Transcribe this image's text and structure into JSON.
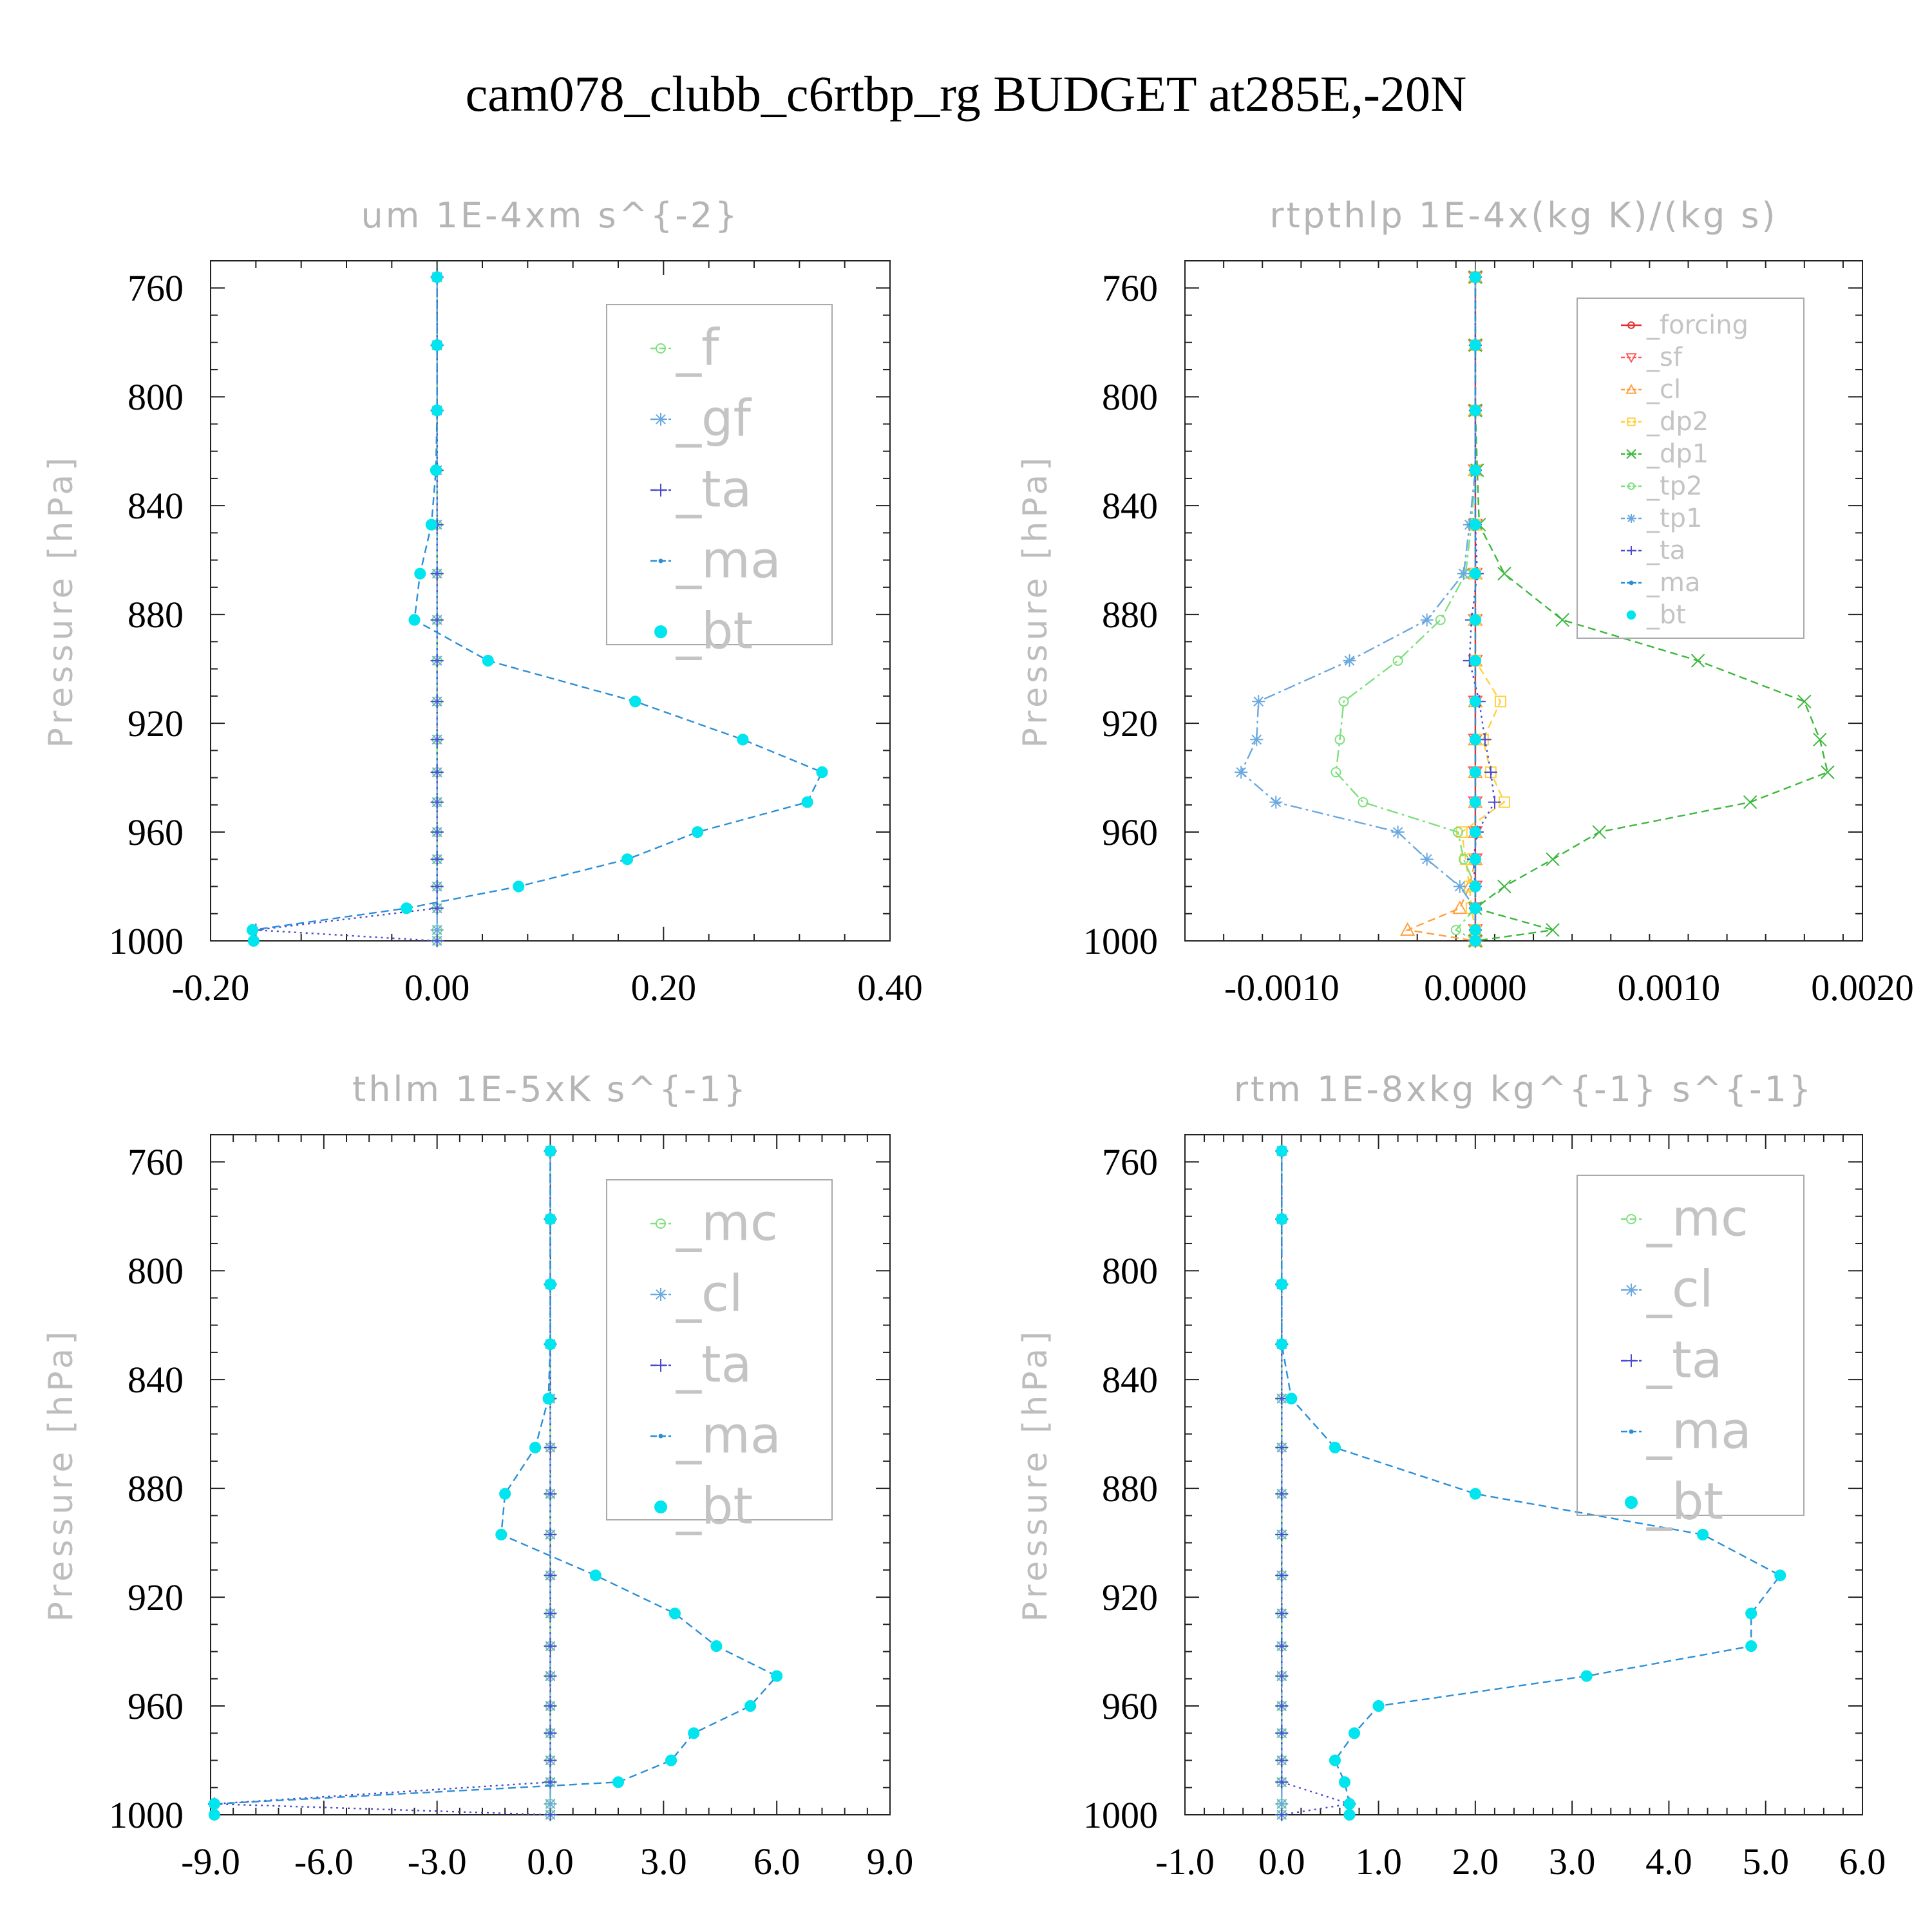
{
  "figure": {
    "title": "cam078_clubb_c6rtbp_rg  BUDGET at285E,-20N",
    "background": "#ffffff"
  },
  "chart_data": [
    {
      "type": "line",
      "title": "um   1E-4xm s^{-2}",
      "xlabel": "",
      "ylabel": "Pressure [hPa]",
      "xlim": [
        -0.2,
        0.4
      ],
      "ylim": [
        1000,
        750
      ],
      "y_inverted": true,
      "xticks": [
        -0.2,
        0.0,
        0.2,
        0.4
      ],
      "xtick_labels": [
        "-0.20",
        "0.00",
        "0.20",
        "0.40"
      ],
      "yticks": [
        760,
        800,
        840,
        880,
        920,
        960,
        1000
      ],
      "legend_position": "top-right",
      "legend_font": "large",
      "pressure_levels": [
        756,
        781,
        805,
        827,
        847,
        865,
        882,
        897,
        912,
        926,
        938,
        949,
        960,
        970,
        980,
        988,
        996,
        1000
      ],
      "series": [
        {
          "name": "_f",
          "color": "#7ee07e",
          "marker": "circle-open",
          "dash": "long",
          "values": [
            0,
            0,
            0,
            0,
            0,
            0,
            0,
            0,
            0,
            0,
            0,
            0,
            0,
            0,
            0,
            0,
            0,
            0
          ]
        },
        {
          "name": "_gf",
          "color": "#6aa8e0",
          "marker": "asterisk",
          "dash": "dashdot",
          "values": [
            0,
            0,
            0,
            0,
            0,
            0,
            0,
            0,
            0,
            0,
            0,
            0,
            0,
            0,
            0,
            0,
            0,
            0
          ]
        },
        {
          "name": "_ta",
          "color": "#4b4bcf",
          "marker": "plus",
          "dash": "dot",
          "values": [
            0,
            0,
            0,
            0,
            0,
            0,
            0,
            0,
            0,
            0,
            0,
            0,
            0,
            0,
            0,
            0,
            -0.16,
            0
          ]
        },
        {
          "name": "_ma",
          "color": "#2a8fd8",
          "marker": "dot",
          "dash": "dash",
          "values": [
            0,
            0,
            0,
            -0.001,
            -0.005,
            -0.015,
            -0.02,
            0.045,
            0.175,
            0.27,
            0.34,
            0.327,
            0.23,
            0.168,
            0.072,
            -0.027,
            -0.163,
            -0.162
          ]
        },
        {
          "name": "_bt",
          "color": "#00e5ee",
          "marker": "filled-circle",
          "dash": "none",
          "values": [
            0,
            0,
            0,
            -0.001,
            -0.005,
            -0.015,
            -0.02,
            0.045,
            0.175,
            0.27,
            0.34,
            0.327,
            0.23,
            0.168,
            0.072,
            -0.027,
            -0.163,
            -0.162
          ]
        }
      ]
    },
    {
      "type": "line",
      "title": "rtpthlp   1E-4x(kg K)/(kg s)",
      "xlabel": "",
      "ylabel": "Pressure [hPa]",
      "xlim": [
        -0.0015,
        0.002
      ],
      "ylim": [
        1000,
        750
      ],
      "y_inverted": true,
      "xticks": [
        -0.001,
        0.0,
        0.001,
        0.002
      ],
      "xtick_labels": [
        "-0.0010",
        "0.0000",
        "0.0010",
        "0.0020"
      ],
      "yticks": [
        760,
        800,
        840,
        880,
        920,
        960,
        1000
      ],
      "legend_position": "top-right",
      "legend_font": "small",
      "pressure_levels": [
        756,
        781,
        805,
        827,
        847,
        865,
        882,
        897,
        912,
        926,
        938,
        949,
        960,
        970,
        980,
        988,
        996,
        1000
      ],
      "series": [
        {
          "name": "_forcing",
          "color": "#e03030",
          "marker": "circle-open",
          "dash": "solid",
          "values": [
            0,
            0,
            0,
            0,
            0,
            0,
            0,
            0,
            0,
            0,
            0,
            0,
            0,
            0,
            0,
            0,
            0,
            0
          ]
        },
        {
          "name": "_sf",
          "color": "#ff5a5a",
          "marker": "triangle-down",
          "dash": "dash",
          "values": [
            0,
            0,
            0,
            0,
            0,
            0,
            0,
            0,
            0,
            0,
            0,
            0,
            0,
            0,
            0,
            0,
            0,
            0
          ]
        },
        {
          "name": "_cl",
          "color": "#ffa040",
          "marker": "triangle-up",
          "dash": "dash",
          "values": [
            0,
            0,
            0,
            0,
            0,
            0,
            0,
            0,
            0,
            0,
            0,
            0,
            0,
            0,
            -3e-05,
            -8e-05,
            -0.00035,
            0
          ]
        },
        {
          "name": "_dp2",
          "color": "#ffd040",
          "marker": "square-open",
          "dash": "dash",
          "values": [
            0,
            0,
            0,
            0,
            0,
            0,
            0,
            0,
            0.00013,
            4e-05,
            8e-05,
            0.00015,
            -7e-05,
            -5e-05,
            -3e-05,
            -2e-05,
            0,
            0
          ]
        },
        {
          "name": "_dp1",
          "color": "#3cb83c",
          "marker": "x",
          "dash": "dash",
          "values": [
            0,
            0,
            0,
            1e-05,
            2e-05,
            0.00015,
            0.00045,
            0.00115,
            0.0017,
            0.00178,
            0.00182,
            0.00142,
            0.00064,
            0.0004,
            0.00015,
            0,
            0.0004,
            0
          ]
        },
        {
          "name": "_tp2",
          "color": "#7ee07e",
          "marker": "circle-open",
          "dash": "dashdot",
          "values": [
            0,
            0,
            0,
            0,
            -2e-05,
            -5e-05,
            -0.00018,
            -0.0004,
            -0.00068,
            -0.0007,
            -0.00072,
            -0.00058,
            -9e-05,
            -6e-05,
            0,
            0,
            -0.0001,
            0
          ]
        },
        {
          "name": "_tp1",
          "color": "#6aa8e0",
          "marker": "asterisk",
          "dash": "dashdot",
          "values": [
            0,
            0,
            0,
            0,
            -3e-05,
            -6e-05,
            -0.00025,
            -0.00065,
            -0.00112,
            -0.00113,
            -0.00121,
            -0.00103,
            -0.0004,
            -0.00025,
            -8e-05,
            0,
            0,
            0
          ]
        },
        {
          "name": "_ta",
          "color": "#4b4bcf",
          "marker": "plus",
          "dash": "dot",
          "values": [
            0,
            0,
            0,
            0,
            0,
            1e-05,
            -2e-05,
            -3e-05,
            2e-05,
            5e-05,
            8e-05,
            0.0001,
            1e-05,
            -1e-05,
            0,
            0,
            0,
            0
          ]
        },
        {
          "name": "_ma",
          "color": "#2a8fd8",
          "marker": "dot",
          "dash": "dash",
          "values": [
            0,
            0,
            0,
            0,
            0,
            0,
            0,
            0,
            0,
            0,
            0,
            0,
            0,
            0,
            0,
            0,
            0,
            0
          ]
        },
        {
          "name": "_bt",
          "color": "#00e5ee",
          "marker": "filled-circle",
          "dash": "none",
          "values": [
            0,
            0,
            0,
            0,
            0,
            0,
            0,
            0,
            0,
            0,
            0,
            0,
            0,
            0,
            0,
            0,
            0,
            0
          ]
        }
      ]
    },
    {
      "type": "line",
      "title": "thlm   1E-5xK s^{-1}",
      "xlabel": "",
      "ylabel": "Pressure [hPa]",
      "xlim": [
        -9,
        9
      ],
      "ylim": [
        1000,
        750
      ],
      "y_inverted": true,
      "xticks": [
        -9,
        -6,
        -3,
        0,
        3,
        6,
        9
      ],
      "xtick_labels": [
        "-9.0",
        "-6.0",
        "-3.0",
        "0.0",
        "3.0",
        "6.0",
        "9.0"
      ],
      "yticks": [
        760,
        800,
        840,
        880,
        920,
        960,
        1000
      ],
      "legend_position": "top-right",
      "legend_font": "large",
      "pressure_levels": [
        756,
        781,
        805,
        827,
        847,
        865,
        882,
        897,
        912,
        926,
        938,
        949,
        960,
        970,
        980,
        988,
        996,
        1000
      ],
      "series": [
        {
          "name": "_mc",
          "color": "#7ee07e",
          "marker": "circle-open",
          "dash": "long",
          "values": [
            0,
            0,
            0,
            0,
            0,
            0,
            0,
            0,
            0,
            0,
            0,
            0,
            0,
            0,
            0,
            0,
            0,
            0
          ]
        },
        {
          "name": "_cl",
          "color": "#6aa8e0",
          "marker": "asterisk",
          "dash": "dashdot",
          "values": [
            0,
            0,
            0,
            0,
            0,
            0,
            0,
            0,
            0,
            0,
            0,
            0,
            0,
            0,
            0,
            0,
            0,
            0
          ]
        },
        {
          "name": "_ta",
          "color": "#4b4bcf",
          "marker": "plus",
          "dash": "dot",
          "values": [
            0,
            0,
            0,
            0,
            0,
            0,
            0,
            0,
            0,
            0,
            0,
            0,
            0,
            0,
            0,
            0,
            -8.9,
            0
          ]
        },
        {
          "name": "_ma",
          "color": "#2a8fd8",
          "marker": "dot",
          "dash": "dash",
          "values": [
            0,
            0,
            0,
            0,
            -0.05,
            -0.4,
            -1.2,
            -1.3,
            1.2,
            3.3,
            4.4,
            6.0,
            5.3,
            3.8,
            3.2,
            1.8,
            -8.9,
            -8.9
          ]
        },
        {
          "name": "_bt",
          "color": "#00e5ee",
          "marker": "filled-circle",
          "dash": "none",
          "values": [
            0,
            0,
            0,
            0,
            -0.05,
            -0.4,
            -1.2,
            -1.3,
            1.2,
            3.3,
            4.4,
            6.0,
            5.3,
            3.8,
            3.2,
            1.8,
            -8.9,
            -8.9
          ]
        }
      ]
    },
    {
      "type": "line",
      "title": "rtm   1E-8xkg kg^{-1} s^{-1}",
      "xlabel": "",
      "ylabel": "Pressure [hPa]",
      "xlim": [
        -1,
        6
      ],
      "ylim": [
        1000,
        750
      ],
      "y_inverted": true,
      "xticks": [
        -1,
        0,
        1,
        2,
        3,
        4,
        5,
        6
      ],
      "xtick_labels": [
        "-1.0",
        "0.0",
        "1.0",
        "2.0",
        "3.0",
        "4.0",
        "5.0",
        "6.0"
      ],
      "yticks": [
        760,
        800,
        840,
        880,
        920,
        960,
        1000
      ],
      "legend_position": "top-right",
      "legend_font": "large",
      "pressure_levels": [
        756,
        781,
        805,
        827,
        847,
        865,
        882,
        897,
        912,
        926,
        938,
        949,
        960,
        970,
        980,
        988,
        996,
        1000
      ],
      "series": [
        {
          "name": "_mc",
          "color": "#7ee07e",
          "marker": "circle-open",
          "dash": "long",
          "values": [
            0,
            0,
            0,
            0,
            0,
            0,
            0,
            0,
            0,
            0,
            0,
            0,
            0,
            0,
            0,
            0,
            0,
            0
          ]
        },
        {
          "name": "_cl",
          "color": "#6aa8e0",
          "marker": "asterisk",
          "dash": "dashdot",
          "values": [
            0,
            0,
            0,
            0,
            0,
            0,
            0,
            0,
            0,
            0,
            0,
            0,
            0,
            0,
            0,
            0,
            0,
            0
          ]
        },
        {
          "name": "_ta",
          "color": "#4b4bcf",
          "marker": "plus",
          "dash": "dot",
          "values": [
            0,
            0,
            0,
            0,
            0,
            0,
            0,
            0,
            0,
            0,
            0,
            0,
            0,
            0,
            0,
            0,
            0.7,
            0
          ]
        },
        {
          "name": "_ma",
          "color": "#2a8fd8",
          "marker": "dot",
          "dash": "dash",
          "values": [
            0,
            0,
            0,
            0,
            0.1,
            0.55,
            2.0,
            4.35,
            5.15,
            4.85,
            4.85,
            3.15,
            1.0,
            0.75,
            0.55,
            0.65,
            0.7,
            0.7
          ]
        },
        {
          "name": "_bt",
          "color": "#00e5ee",
          "marker": "filled-circle",
          "dash": "none",
          "values": [
            0,
            0,
            0,
            0,
            0.1,
            0.55,
            2.0,
            4.35,
            5.15,
            4.85,
            4.85,
            3.15,
            1.0,
            0.75,
            0.55,
            0.65,
            0.7,
            0.7
          ]
        }
      ]
    }
  ]
}
